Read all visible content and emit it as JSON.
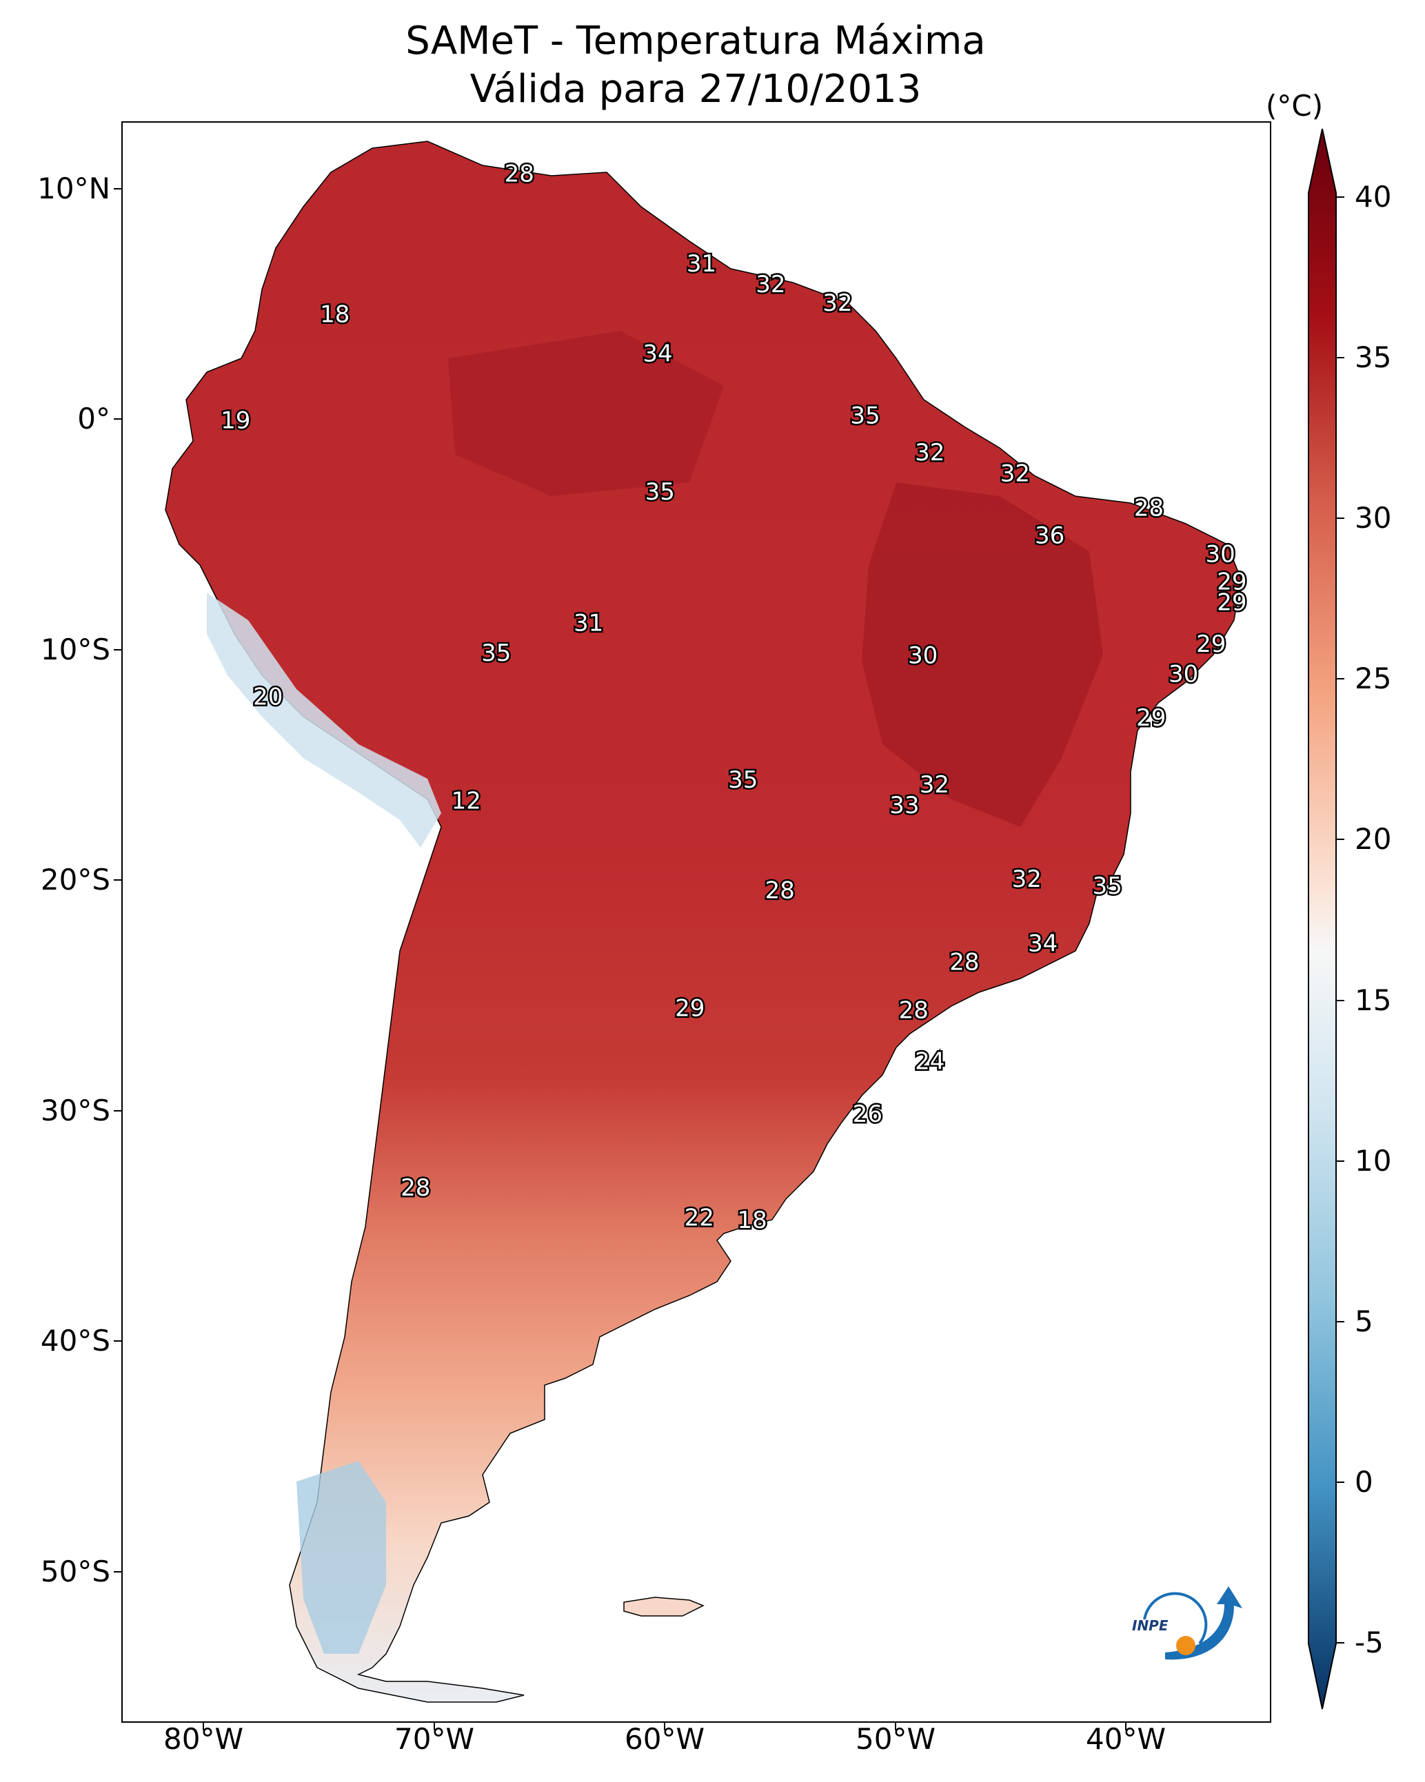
{
  "title": "SAMeT - Temperatura Máxima",
  "subtitle": "Válida para 27/10/2013",
  "colorbar": {
    "unit": "(°C)",
    "ticks": [
      "40",
      "35",
      "30",
      "25",
      "20",
      "15",
      "10",
      "5",
      "0",
      "-5"
    ],
    "colors": {
      "min": "#0b3c7a",
      "mid_low": "#4a90c4",
      "mid": "#f7f7f7",
      "mid_high": "#e98c6b",
      "max": "#67000d"
    }
  },
  "axes": {
    "lat_labels": [
      "10°N",
      "0°",
      "10°S",
      "20°S",
      "30°S",
      "40°S",
      "50°S"
    ],
    "lon_labels": [
      "80°W",
      "70°W",
      "60°W",
      "50°W",
      "40°W"
    ]
  },
  "contour_labels": [
    {
      "text": "28",
      "lon": -66.3,
      "lat": 10.6
    },
    {
      "text": "18",
      "lon": -74.3,
      "lat": 4.5
    },
    {
      "text": "31",
      "lon": -58.4,
      "lat": 6.7
    },
    {
      "text": "32",
      "lon": -55.4,
      "lat": 5.8
    },
    {
      "text": "32",
      "lon": -52.5,
      "lat": 5.0
    },
    {
      "text": "34",
      "lon": -60.3,
      "lat": 2.8
    },
    {
      "text": "19",
      "lon": -78.6,
      "lat": -0.1
    },
    {
      "text": "35",
      "lon": -51.3,
      "lat": 0.1
    },
    {
      "text": "32",
      "lon": -48.5,
      "lat": -1.5
    },
    {
      "text": "32",
      "lon": -44.8,
      "lat": -2.4
    },
    {
      "text": "35",
      "lon": -60.2,
      "lat": -3.2
    },
    {
      "text": "28",
      "lon": -39.0,
      "lat": -3.9
    },
    {
      "text": "36",
      "lon": -43.3,
      "lat": -5.1
    },
    {
      "text": "30",
      "lon": -35.9,
      "lat": -5.9
    },
    {
      "text": "29",
      "lon": -35.4,
      "lat": -7.1
    },
    {
      "text": "29",
      "lon": -35.4,
      "lat": -8.0
    },
    {
      "text": "31",
      "lon": -63.3,
      "lat": -8.9
    },
    {
      "text": "35",
      "lon": -67.3,
      "lat": -10.2
    },
    {
      "text": "30",
      "lon": -48.8,
      "lat": -10.3
    },
    {
      "text": "29",
      "lon": -36.3,
      "lat": -9.8
    },
    {
      "text": "30",
      "lon": -37.5,
      "lat": -11.1
    },
    {
      "text": "20",
      "lon": -77.2,
      "lat": -12.1
    },
    {
      "text": "29",
      "lon": -38.9,
      "lat": -13.0
    },
    {
      "text": "12",
      "lon": -68.6,
      "lat": -16.6
    },
    {
      "text": "35",
      "lon": -56.6,
      "lat": -15.7
    },
    {
      "text": "32",
      "lon": -48.3,
      "lat": -15.9
    },
    {
      "text": "33",
      "lon": -49.6,
      "lat": -16.8
    },
    {
      "text": "32",
      "lon": -44.3,
      "lat": -20.0
    },
    {
      "text": "35",
      "lon": -40.8,
      "lat": -20.3
    },
    {
      "text": "28",
      "lon": -55.0,
      "lat": -20.5
    },
    {
      "text": "34",
      "lon": -43.6,
      "lat": -22.8
    },
    {
      "text": "28",
      "lon": -47.0,
      "lat": -23.6
    },
    {
      "text": "29",
      "lon": -58.9,
      "lat": -25.6
    },
    {
      "text": "28",
      "lon": -49.2,
      "lat": -25.7
    },
    {
      "text": "24",
      "lon": -48.5,
      "lat": -27.9
    },
    {
      "text": "26",
      "lon": -51.2,
      "lat": -30.2
    },
    {
      "text": "28",
      "lon": -70.8,
      "lat": -33.4
    },
    {
      "text": "22",
      "lon": -58.5,
      "lat": -34.7
    },
    {
      "text": "18",
      "lon": -56.2,
      "lat": -34.8
    }
  ],
  "logo": {
    "text": "INPE"
  }
}
